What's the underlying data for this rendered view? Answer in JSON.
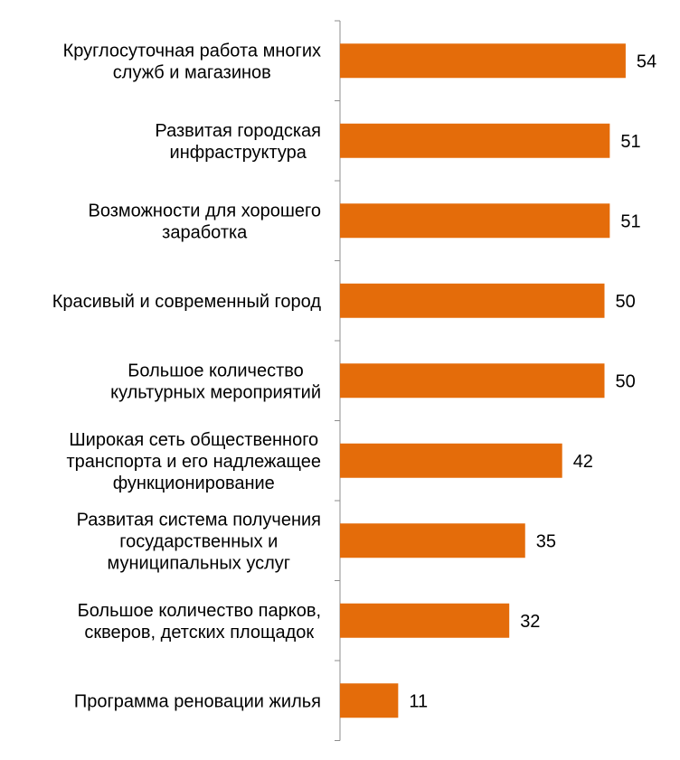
{
  "chart_data": {
    "type": "bar",
    "orientation": "horizontal",
    "categories": [
      [
        "Круглосуточная работа многих",
        "служб и магазинов"
      ],
      [
        "Развитая городская",
        "инфраструктура"
      ],
      [
        "Возможности для хорошего",
        "заработка"
      ],
      [
        "Красивый и современный город"
      ],
      [
        "Большое количество",
        "культурных мероприятий"
      ],
      [
        "Широкая сеть общественного",
        "транспорта и его надлежащее",
        "функционирование"
      ],
      [
        "Развитая система получения",
        "государственных и",
        "муниципальных услуг"
      ],
      [
        "Большое количество парков,",
        "скверов, детских площадок"
      ],
      [
        "Программа реновации жилья"
      ]
    ],
    "values": [
      54,
      51,
      51,
      50,
      50,
      42,
      35,
      32,
      11
    ],
    "bar_color": "#E46C0A",
    "grid": false,
    "legend": "none"
  }
}
